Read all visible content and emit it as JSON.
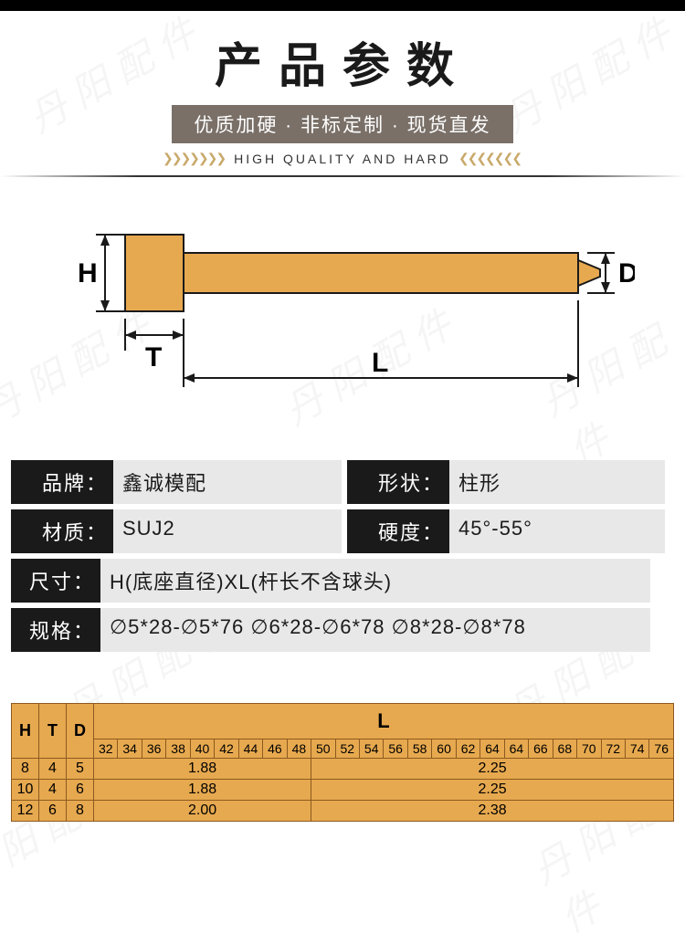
{
  "header": {
    "title": "产品参数",
    "subtitle": "优质加硬 · 非标定制 · 现货直发",
    "sub2": "HIGH QUALITY AND HARD",
    "chevrons": "❯❯❯❯❯❯❯"
  },
  "watermark": "丹 阳 配 件",
  "diagram": {
    "labels": {
      "H": "H",
      "T": "T",
      "L": "L",
      "D": "D"
    },
    "colors": {
      "fill": "#e7a94f",
      "stroke": "#1a1a1a"
    }
  },
  "specs": {
    "brand_label": "品牌：",
    "brand_value": "鑫诚模配",
    "shape_label": "形状：",
    "shape_value": "柱形",
    "material_label": "材质：",
    "material_value": "SUJ2",
    "hardness_label": "硬度：",
    "hardness_value": "45°-55°",
    "size_label": "尺寸：",
    "size_value": "H(底座直径)XL(杆长不含球头)",
    "spec_label": "规格：",
    "spec_value": "∅5*28-∅5*76  ∅6*28-∅6*78  ∅8*28-∅8*78"
  },
  "data_table": {
    "head_H": "H",
    "head_T": "T",
    "head_D": "D",
    "head_L": "L",
    "L_values": [
      "32",
      "34",
      "36",
      "38",
      "40",
      "42",
      "44",
      "46",
      "48",
      "50",
      "52",
      "54",
      "56",
      "58",
      "60",
      "62",
      "64",
      "64",
      "66",
      "68",
      "70",
      "72",
      "74",
      "76"
    ],
    "rows": [
      {
        "H": "8",
        "T": "4",
        "D": "5",
        "a": "1.88",
        "b": "2.25"
      },
      {
        "H": "10",
        "T": "4",
        "D": "6",
        "a": "1.88",
        "b": "2.25"
      },
      {
        "H": "12",
        "T": "6",
        "D": "8",
        "a": "2.00",
        "b": "2.38"
      }
    ]
  }
}
